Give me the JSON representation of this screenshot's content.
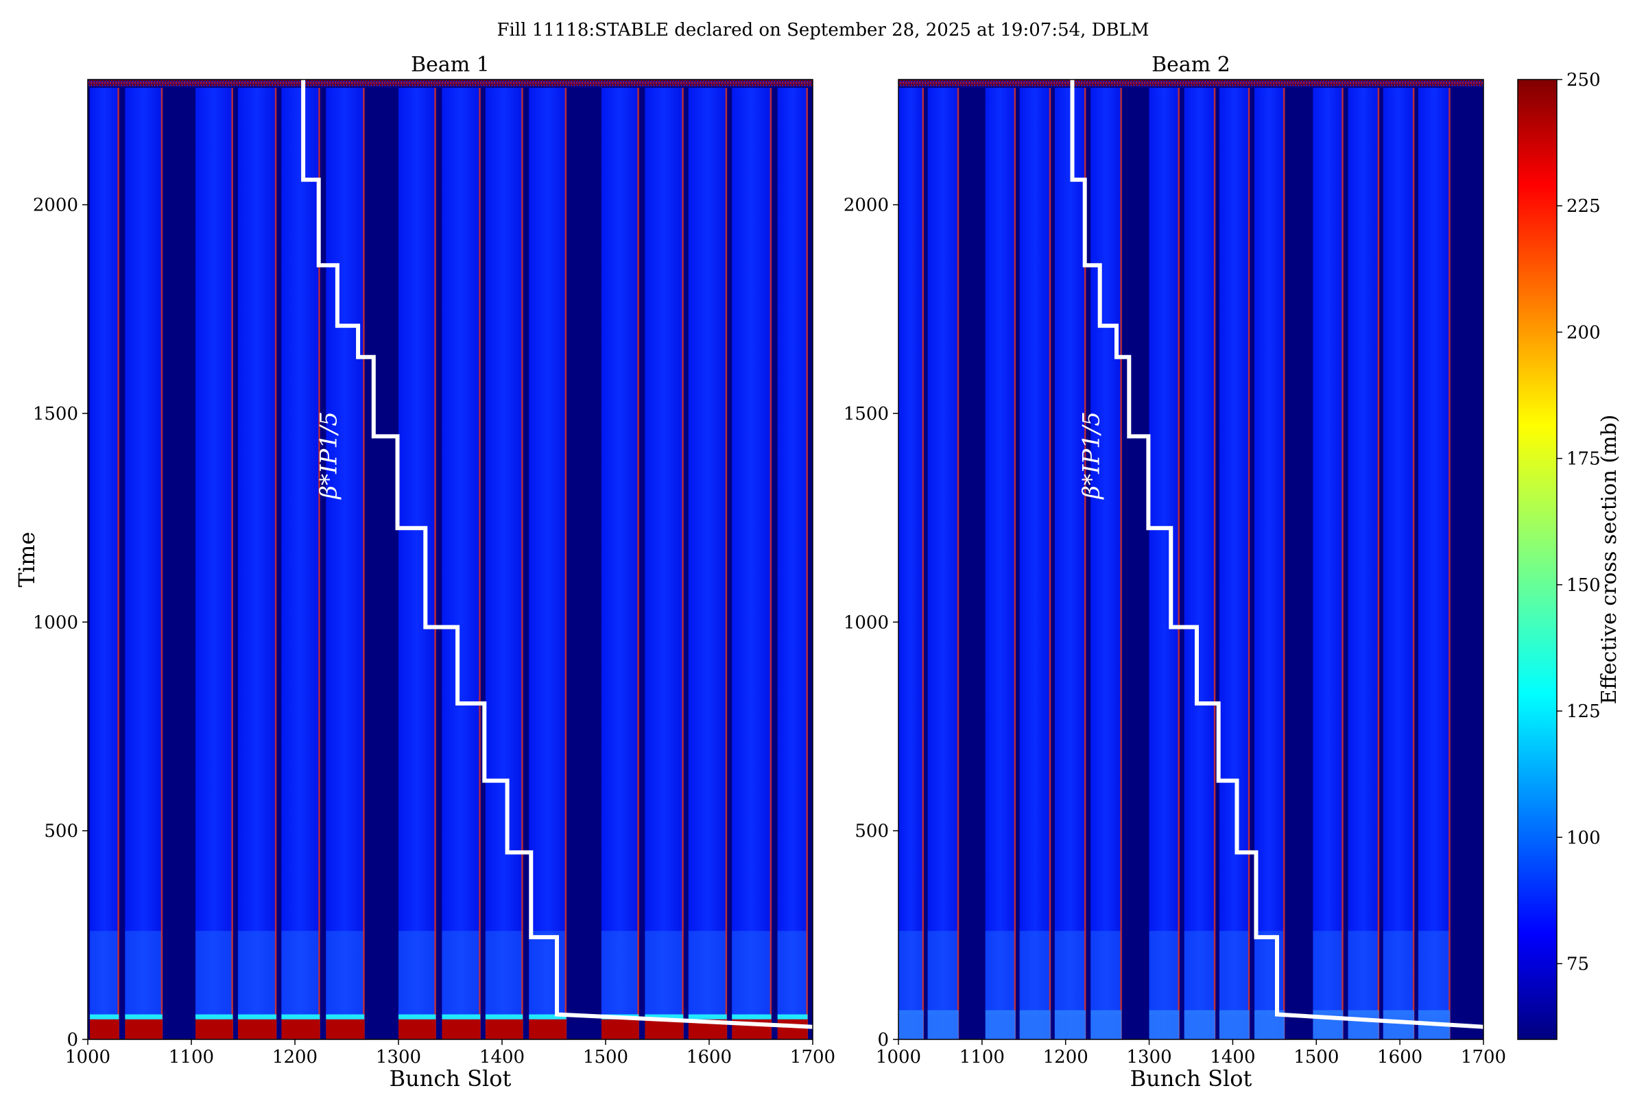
{
  "chart_data": {
    "type": "heatmap",
    "title": "Fill 11118:STABLE declared on September 28, 2025 at 19:07:54, DBLM",
    "ylabel": "Time",
    "colorbar": {
      "label": "Effective cross section (mb)",
      "range": [
        60,
        250
      ],
      "ticks": [
        75,
        100,
        125,
        150,
        175,
        200,
        225,
        250
      ],
      "colormap": "jet"
    },
    "panels": [
      {
        "title": "Beam 1",
        "xlabel": "Bunch Slot",
        "xlim": [
          1000,
          1700
        ],
        "ylim": [
          0,
          2300
        ],
        "xticks": [
          1000,
          1100,
          1200,
          1300,
          1400,
          1500,
          1600,
          1700
        ],
        "yticks": [
          0,
          500,
          1000,
          1500,
          2000
        ],
        "filled_trains": [
          [
            1002,
            1030
          ],
          [
            1036,
            1072
          ],
          [
            1104,
            1140
          ],
          [
            1145,
            1182
          ],
          [
            1187,
            1224
          ],
          [
            1230,
            1267
          ],
          [
            1300,
            1336
          ],
          [
            1342,
            1379
          ],
          [
            1384,
            1420
          ],
          [
            1426,
            1462
          ],
          [
            1496,
            1532
          ],
          [
            1538,
            1575
          ],
          [
            1580,
            1617
          ],
          [
            1622,
            1660
          ],
          [
            1666,
            1695
          ]
        ],
        "annotation": "β*IP1/5",
        "beta_star_curve": {
          "x": [
            1208,
            1208,
            1223,
            1223,
            1241,
            1241,
            1261,
            1261,
            1276,
            1276,
            1299,
            1299,
            1326,
            1326,
            1357,
            1357,
            1383,
            1383,
            1405,
            1405,
            1428,
            1428,
            1453,
            1453,
            1700
          ],
          "y": [
            2300,
            2060,
            2060,
            1855,
            1855,
            1710,
            1710,
            1635,
            1635,
            1445,
            1445,
            1225,
            1225,
            988,
            988,
            805,
            805,
            620,
            620,
            448,
            448,
            245,
            245,
            60,
            30
          ]
        }
      },
      {
        "title": "Beam 2",
        "xlabel": "Bunch Slot",
        "xlim": [
          1000,
          1700
        ],
        "ylim": [
          0,
          2300
        ],
        "xticks": [
          1000,
          1100,
          1200,
          1300,
          1400,
          1500,
          1600,
          1700
        ],
        "yticks": [
          0,
          500,
          1000,
          1500,
          2000
        ],
        "filled_trains": [
          [
            1000,
            1030
          ],
          [
            1035,
            1072
          ],
          [
            1104,
            1140
          ],
          [
            1145,
            1182
          ],
          [
            1187,
            1224
          ],
          [
            1230,
            1267
          ],
          [
            1300,
            1336
          ],
          [
            1342,
            1379
          ],
          [
            1384,
            1420
          ],
          [
            1426,
            1462
          ],
          [
            1496,
            1532
          ],
          [
            1538,
            1575
          ],
          [
            1580,
            1617
          ],
          [
            1622,
            1660
          ]
        ],
        "annotation": "β*IP1/5",
        "beta_star_curve": {
          "x": [
            1208,
            1208,
            1223,
            1223,
            1241,
            1241,
            1261,
            1261,
            1276,
            1276,
            1299,
            1299,
            1326,
            1326,
            1357,
            1357,
            1383,
            1383,
            1405,
            1405,
            1428,
            1428,
            1453,
            1453,
            1700
          ],
          "y": [
            2300,
            2060,
            2060,
            1855,
            1855,
            1710,
            1710,
            1635,
            1635,
            1445,
            1445,
            1225,
            1225,
            988,
            988,
            805,
            805,
            620,
            620,
            448,
            448,
            245,
            245,
            60,
            30
          ]
        }
      }
    ]
  }
}
